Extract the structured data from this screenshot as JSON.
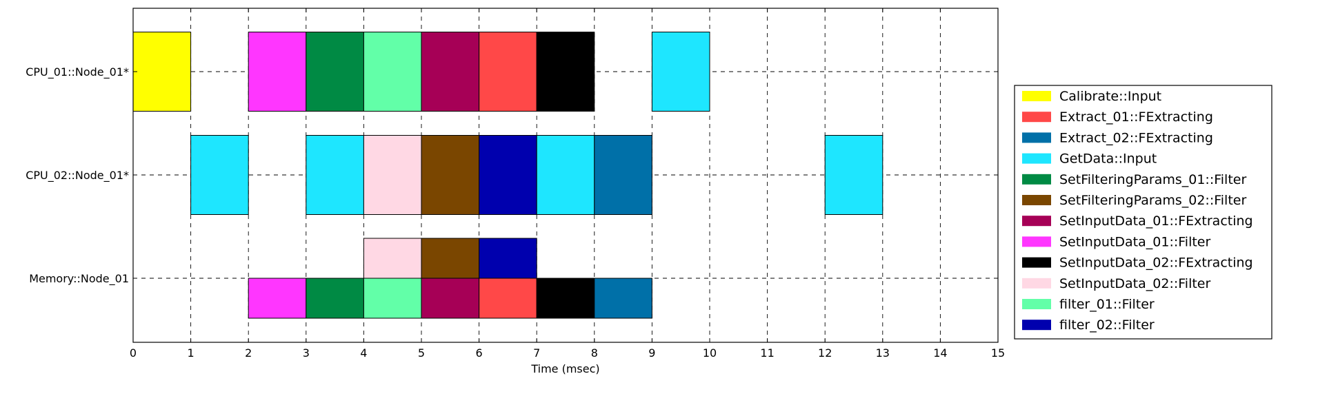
{
  "chart_data": {
    "type": "gantt",
    "xlabel": "Time (msec)",
    "xlim": [
      0,
      15
    ],
    "x_ticks": [
      0,
      1,
      2,
      3,
      4,
      5,
      6,
      7,
      8,
      9,
      10,
      11,
      12,
      13,
      14,
      15
    ],
    "grid": true,
    "legend_position": "right",
    "rows": [
      "CPU_01::Node_01*",
      "CPU_02::Node_01*",
      "Memory::Node_01"
    ],
    "legend": [
      {
        "label": "Calibrate::Input",
        "color": "#ffff00"
      },
      {
        "label": "Extract_01::FExtracting",
        "color": "#ff4848"
      },
      {
        "label": "Extract_02::FExtracting",
        "color": "#0070a8"
      },
      {
        "label": "GetData::Input",
        "color": "#1ee6ff"
      },
      {
        "label": "SetFilteringParams_01::Filter",
        "color": "#008a44"
      },
      {
        "label": "SetFilteringParams_02::Filter",
        "color": "#7a4600"
      },
      {
        "label": "SetInputData_01::FExtracting",
        "color": "#a60056"
      },
      {
        "label": "SetInputData_01::Filter",
        "color": "#ff36ff"
      },
      {
        "label": "SetInputData_02::FExtracting",
        "color": "#000000"
      },
      {
        "label": "SetInputData_02::Filter",
        "color": "#ffd8e4"
      },
      {
        "label": "filter_01::Filter",
        "color": "#62ffa8"
      },
      {
        "label": "filter_02::Filter",
        "color": "#0000ae"
      }
    ],
    "tasks": [
      {
        "row": 0,
        "lane": 0,
        "start": 0,
        "end": 1,
        "task": "Calibrate::Input"
      },
      {
        "row": 0,
        "lane": 0,
        "start": 2,
        "end": 3,
        "task": "SetInputData_01::Filter"
      },
      {
        "row": 0,
        "lane": 0,
        "start": 3,
        "end": 4,
        "task": "SetFilteringParams_01::Filter"
      },
      {
        "row": 0,
        "lane": 0,
        "start": 4,
        "end": 5,
        "task": "filter_01::Filter"
      },
      {
        "row": 0,
        "lane": 0,
        "start": 5,
        "end": 6,
        "task": "SetInputData_01::FExtracting"
      },
      {
        "row": 0,
        "lane": 0,
        "start": 6,
        "end": 7,
        "task": "Extract_01::FExtracting"
      },
      {
        "row": 0,
        "lane": 0,
        "start": 7,
        "end": 8,
        "task": "SetInputData_02::FExtracting"
      },
      {
        "row": 0,
        "lane": 0,
        "start": 9,
        "end": 10,
        "task": "GetData::Input"
      },
      {
        "row": 1,
        "lane": 0,
        "start": 1,
        "end": 2,
        "task": "GetData::Input"
      },
      {
        "row": 1,
        "lane": 0,
        "start": 3,
        "end": 4,
        "task": "GetData::Input"
      },
      {
        "row": 1,
        "lane": 0,
        "start": 4,
        "end": 5,
        "task": "SetInputData_02::Filter"
      },
      {
        "row": 1,
        "lane": 0,
        "start": 5,
        "end": 6,
        "task": "SetFilteringParams_02::Filter"
      },
      {
        "row": 1,
        "lane": 0,
        "start": 6,
        "end": 7,
        "task": "filter_02::Filter"
      },
      {
        "row": 1,
        "lane": 0,
        "start": 7,
        "end": 8,
        "task": "GetData::Input"
      },
      {
        "row": 1,
        "lane": 0,
        "start": 8,
        "end": 9,
        "task": "Extract_02::FExtracting"
      },
      {
        "row": 1,
        "lane": 0,
        "start": 12,
        "end": 13,
        "task": "GetData::Input"
      },
      {
        "row": 2,
        "lane": 1,
        "start": 4,
        "end": 5,
        "task": "SetInputData_02::Filter"
      },
      {
        "row": 2,
        "lane": 1,
        "start": 5,
        "end": 6,
        "task": "SetFilteringParams_02::Filter"
      },
      {
        "row": 2,
        "lane": 1,
        "start": 6,
        "end": 7,
        "task": "filter_02::Filter"
      },
      {
        "row": 2,
        "lane": 2,
        "start": 2,
        "end": 3,
        "task": "SetInputData_01::Filter"
      },
      {
        "row": 2,
        "lane": 2,
        "start": 3,
        "end": 4,
        "task": "SetFilteringParams_01::Filter"
      },
      {
        "row": 2,
        "lane": 2,
        "start": 4,
        "end": 5,
        "task": "filter_01::Filter"
      },
      {
        "row": 2,
        "lane": 2,
        "start": 5,
        "end": 6,
        "task": "SetInputData_01::FExtracting"
      },
      {
        "row": 2,
        "lane": 2,
        "start": 6,
        "end": 7,
        "task": "Extract_01::FExtracting"
      },
      {
        "row": 2,
        "lane": 2,
        "start": 7,
        "end": 8,
        "task": "SetInputData_02::FExtracting"
      },
      {
        "row": 2,
        "lane": 2,
        "start": 8,
        "end": 9,
        "task": "Extract_02::FExtracting"
      }
    ]
  }
}
